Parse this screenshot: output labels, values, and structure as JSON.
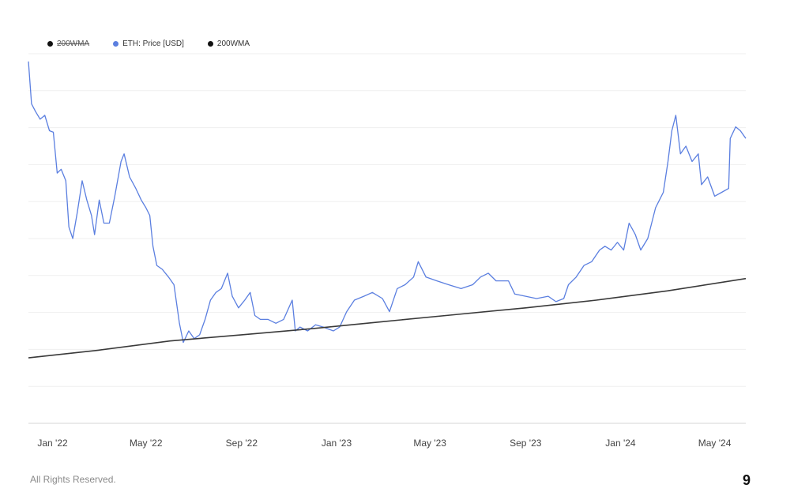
{
  "legend": [
    {
      "label": "200WMA",
      "color": "#111111",
      "hidden": true
    },
    {
      "label": "ETH: Price [USD]",
      "color": "#5b7fe0",
      "hidden": false
    },
    {
      "label": "200WMA",
      "color": "#111111",
      "hidden": false
    }
  ],
  "footer": {
    "text": "All Rights Reserved.",
    "corner_mark": "9"
  },
  "chart_data": {
    "type": "line",
    "x_tick_labels": [
      "Jan '22",
      "May '22",
      "Sep '22",
      "Jan '23",
      "May '23",
      "Sep '23",
      "Jan '24",
      "May '24"
    ],
    "x_range": [
      "2021-12-01",
      "2024-06-10"
    ],
    "ylim": [
      0,
      4800
    ],
    "y_scale": "linear",
    "grid": "horizontal",
    "legend_position": "top-left",
    "series": [
      {
        "name": "ETH: Price [USD]",
        "color": "#5b7fe0",
        "points": [
          [
            "2021-12-01",
            4700
          ],
          [
            "2021-12-05",
            4150
          ],
          [
            "2021-12-10",
            4050
          ],
          [
            "2021-12-16",
            3950
          ],
          [
            "2021-12-22",
            4000
          ],
          [
            "2021-12-28",
            3800
          ],
          [
            "2022-01-02",
            3780
          ],
          [
            "2022-01-07",
            3250
          ],
          [
            "2022-01-12",
            3300
          ],
          [
            "2022-01-18",
            3150
          ],
          [
            "2022-01-22",
            2550
          ],
          [
            "2022-01-27",
            2400
          ],
          [
            "2022-02-02",
            2750
          ],
          [
            "2022-02-08",
            3150
          ],
          [
            "2022-02-14",
            2900
          ],
          [
            "2022-02-20",
            2700
          ],
          [
            "2022-02-24",
            2450
          ],
          [
            "2022-03-02",
            2900
          ],
          [
            "2022-03-08",
            2600
          ],
          [
            "2022-03-15",
            2600
          ],
          [
            "2022-03-22",
            2950
          ],
          [
            "2022-03-30",
            3400
          ],
          [
            "2022-04-03",
            3500
          ],
          [
            "2022-04-10",
            3200
          ],
          [
            "2022-04-18",
            3050
          ],
          [
            "2022-04-25",
            2900
          ],
          [
            "2022-05-01",
            2800
          ],
          [
            "2022-05-06",
            2700
          ],
          [
            "2022-05-10",
            2300
          ],
          [
            "2022-05-15",
            2050
          ],
          [
            "2022-05-22",
            2000
          ],
          [
            "2022-05-30",
            1900
          ],
          [
            "2022-06-06",
            1800
          ],
          [
            "2022-06-13",
            1300
          ],
          [
            "2022-06-18",
            1050
          ],
          [
            "2022-06-25",
            1200
          ],
          [
            "2022-07-02",
            1100
          ],
          [
            "2022-07-09",
            1150
          ],
          [
            "2022-07-16",
            1350
          ],
          [
            "2022-07-23",
            1600
          ],
          [
            "2022-07-30",
            1700
          ],
          [
            "2022-08-06",
            1750
          ],
          [
            "2022-08-14",
            1950
          ],
          [
            "2022-08-20",
            1650
          ],
          [
            "2022-08-28",
            1500
          ],
          [
            "2022-09-05",
            1600
          ],
          [
            "2022-09-12",
            1700
          ],
          [
            "2022-09-18",
            1400
          ],
          [
            "2022-09-25",
            1350
          ],
          [
            "2022-10-05",
            1350
          ],
          [
            "2022-10-15",
            1300
          ],
          [
            "2022-10-25",
            1350
          ],
          [
            "2022-11-05",
            1600
          ],
          [
            "2022-11-09",
            1200
          ],
          [
            "2022-11-15",
            1250
          ],
          [
            "2022-11-25",
            1200
          ],
          [
            "2022-12-05",
            1280
          ],
          [
            "2022-12-15",
            1250
          ],
          [
            "2022-12-28",
            1200
          ],
          [
            "2023-01-05",
            1250
          ],
          [
            "2023-01-14",
            1450
          ],
          [
            "2023-01-24",
            1600
          ],
          [
            "2023-02-05",
            1650
          ],
          [
            "2023-02-16",
            1700
          ],
          [
            "2023-03-01",
            1620
          ],
          [
            "2023-03-10",
            1450
          ],
          [
            "2023-03-20",
            1750
          ],
          [
            "2023-03-30",
            1800
          ],
          [
            "2023-04-10",
            1900
          ],
          [
            "2023-04-16",
            2100
          ],
          [
            "2023-04-26",
            1900
          ],
          [
            "2023-05-10",
            1850
          ],
          [
            "2023-05-25",
            1800
          ],
          [
            "2023-06-10",
            1750
          ],
          [
            "2023-06-25",
            1800
          ],
          [
            "2023-07-05",
            1900
          ],
          [
            "2023-07-15",
            1950
          ],
          [
            "2023-07-25",
            1850
          ],
          [
            "2023-08-10",
            1850
          ],
          [
            "2023-08-18",
            1680
          ],
          [
            "2023-09-01",
            1650
          ],
          [
            "2023-09-15",
            1620
          ],
          [
            "2023-09-30",
            1650
          ],
          [
            "2023-10-10",
            1580
          ],
          [
            "2023-10-20",
            1620
          ],
          [
            "2023-10-26",
            1800
          ],
          [
            "2023-11-05",
            1900
          ],
          [
            "2023-11-15",
            2050
          ],
          [
            "2023-11-25",
            2100
          ],
          [
            "2023-12-05",
            2250
          ],
          [
            "2023-12-12",
            2300
          ],
          [
            "2023-12-20",
            2250
          ],
          [
            "2023-12-28",
            2350
          ],
          [
            "2024-01-05",
            2250
          ],
          [
            "2024-01-12",
            2600
          ],
          [
            "2024-01-20",
            2450
          ],
          [
            "2024-01-27",
            2250
          ],
          [
            "2024-02-05",
            2400
          ],
          [
            "2024-02-15",
            2800
          ],
          [
            "2024-02-25",
            3000
          ],
          [
            "2024-03-02",
            3400
          ],
          [
            "2024-03-07",
            3800
          ],
          [
            "2024-03-12",
            4000
          ],
          [
            "2024-03-18",
            3500
          ],
          [
            "2024-03-25",
            3600
          ],
          [
            "2024-04-02",
            3400
          ],
          [
            "2024-04-10",
            3500
          ],
          [
            "2024-04-14",
            3100
          ],
          [
            "2024-04-22",
            3200
          ],
          [
            "2024-05-01",
            2950
          ],
          [
            "2024-05-10",
            3000
          ],
          [
            "2024-05-19",
            3050
          ],
          [
            "2024-05-21",
            3700
          ],
          [
            "2024-05-28",
            3850
          ],
          [
            "2024-06-03",
            3800
          ],
          [
            "2024-06-10",
            3700
          ]
        ]
      },
      {
        "name": "200WMA",
        "color": "#3a3a3a",
        "points": [
          [
            "2021-12-01",
            850
          ],
          [
            "2022-03-01",
            950
          ],
          [
            "2022-06-01",
            1070
          ],
          [
            "2022-09-01",
            1150
          ],
          [
            "2022-12-01",
            1230
          ],
          [
            "2023-03-01",
            1320
          ],
          [
            "2023-06-01",
            1410
          ],
          [
            "2023-09-01",
            1500
          ],
          [
            "2023-12-01",
            1600
          ],
          [
            "2024-03-01",
            1720
          ],
          [
            "2024-06-10",
            1880
          ]
        ]
      }
    ]
  }
}
